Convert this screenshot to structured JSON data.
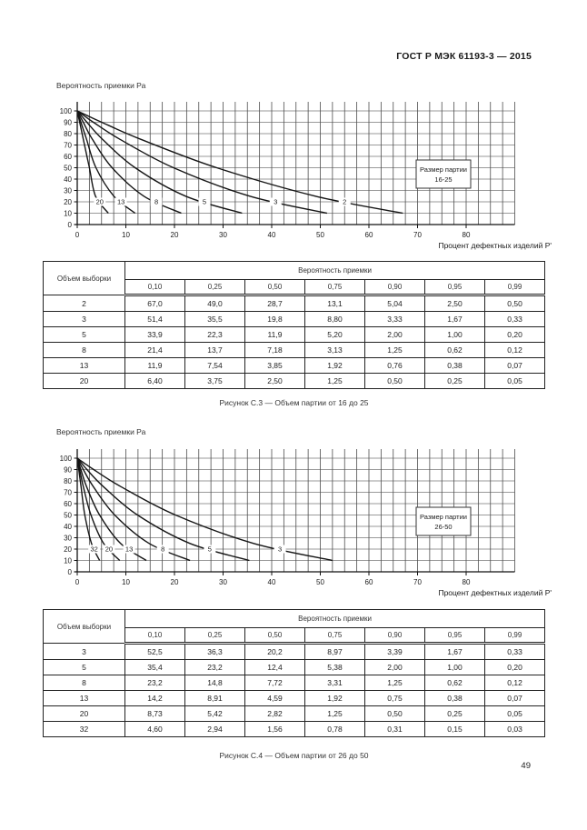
{
  "page": {
    "header": "ГОСТ Р МЭК 61193-3 — 2015",
    "page_number": "49"
  },
  "charts": [
    {
      "y_axis_title": "Вероятность приемки Ра",
      "x_axis_label": "Процент дефектных изделий Р'",
      "legend_box": {
        "line1": "Размер партии",
        "line2": "16-25"
      }
    },
    {
      "y_axis_title": "Вероятность приемки Ра",
      "x_axis_label": "Процент дефектных изделий Р'",
      "legend_box": {
        "line1": "Размер партии",
        "line2": "26-50"
      }
    }
  ],
  "chart_data": [
    {
      "type": "line",
      "title": "Кривые оперативной характеристики, размер партии 16-25",
      "xlabel": "Процент дефектных изделий Р'",
      "ylabel": "Вероятность приемки Ра",
      "xlim": [
        0,
        90
      ],
      "ylim": [
        0,
        100
      ],
      "x_ticks": [
        0,
        10,
        20,
        30,
        40,
        50,
        60,
        70,
        80
      ],
      "y_ticks": [
        0,
        10,
        20,
        30,
        40,
        50,
        60,
        70,
        80,
        90,
        100
      ],
      "x_minor_step": 2.5,
      "grid": true,
      "pa_levels": [
        100,
        99,
        95,
        90,
        75,
        50,
        25,
        10
      ],
      "series": [
        {
          "name": "20",
          "y": [
            100,
            99,
            95,
            90,
            75,
            50,
            25,
            10
          ],
          "x": [
            0,
            0.05,
            0.25,
            0.5,
            1.25,
            2.5,
            3.75,
            6.4
          ]
        },
        {
          "name": "13",
          "y": [
            100,
            99,
            95,
            90,
            75,
            50,
            25,
            10
          ],
          "x": [
            0,
            0.07,
            0.38,
            0.76,
            1.92,
            3.85,
            7.54,
            11.9
          ]
        },
        {
          "name": "8",
          "y": [
            100,
            99,
            95,
            90,
            75,
            50,
            25,
            10
          ],
          "x": [
            0,
            0.12,
            0.62,
            1.25,
            3.13,
            7.18,
            13.7,
            21.4
          ]
        },
        {
          "name": "5",
          "y": [
            100,
            99,
            95,
            90,
            75,
            50,
            25,
            10
          ],
          "x": [
            0,
            0.2,
            1.0,
            2.0,
            5.2,
            11.9,
            22.3,
            33.9
          ]
        },
        {
          "name": "3",
          "y": [
            100,
            99,
            95,
            90,
            75,
            50,
            25,
            10
          ],
          "x": [
            0,
            0.33,
            1.67,
            3.33,
            8.8,
            19.8,
            35.5,
            51.4
          ]
        },
        {
          "name": "2",
          "y": [
            100,
            99,
            95,
            90,
            75,
            50,
            25,
            10
          ],
          "x": [
            0,
            0.5,
            2.5,
            5.04,
            13.1,
            28.7,
            49.0,
            67.0
          ]
        }
      ]
    },
    {
      "type": "line",
      "title": "Кривые оперативной характеристики, размер партии 26-50",
      "xlabel": "Процент дефектных изделий Р'",
      "ylabel": "Вероятность приемки Ра",
      "xlim": [
        0,
        90
      ],
      "ylim": [
        0,
        100
      ],
      "x_ticks": [
        0,
        10,
        20,
        30,
        40,
        50,
        60,
        70,
        80
      ],
      "y_ticks": [
        0,
        10,
        20,
        30,
        40,
        50,
        60,
        70,
        80,
        90,
        100
      ],
      "x_minor_step": 2.5,
      "grid": true,
      "pa_levels": [
        100,
        99,
        95,
        90,
        75,
        50,
        25,
        10
      ],
      "series": [
        {
          "name": "32",
          "y": [
            100,
            99,
            95,
            90,
            75,
            50,
            25,
            10
          ],
          "x": [
            0,
            0.03,
            0.15,
            0.31,
            0.78,
            1.56,
            2.94,
            4.6
          ]
        },
        {
          "name": "20",
          "y": [
            100,
            99,
            95,
            90,
            75,
            50,
            25,
            10
          ],
          "x": [
            0,
            0.05,
            0.25,
            0.5,
            1.25,
            2.82,
            5.42,
            8.73
          ]
        },
        {
          "name": "13",
          "y": [
            100,
            99,
            95,
            90,
            75,
            50,
            25,
            10
          ],
          "x": [
            0,
            0.07,
            0.38,
            0.75,
            1.92,
            4.59,
            8.91,
            14.2
          ]
        },
        {
          "name": "8",
          "y": [
            100,
            99,
            95,
            90,
            75,
            50,
            25,
            10
          ],
          "x": [
            0,
            0.12,
            0.62,
            1.25,
            3.31,
            7.72,
            14.8,
            23.2
          ]
        },
        {
          "name": "5",
          "y": [
            100,
            99,
            95,
            90,
            75,
            50,
            25,
            10
          ],
          "x": [
            0,
            0.2,
            1.0,
            2.0,
            5.38,
            12.4,
            23.2,
            35.4
          ]
        },
        {
          "name": "3",
          "y": [
            100,
            99,
            95,
            90,
            75,
            50,
            25,
            10
          ],
          "x": [
            0,
            0.33,
            1.67,
            3.39,
            8.97,
            20.2,
            36.3,
            52.5
          ]
        }
      ]
    }
  ],
  "tables": [
    {
      "corner_header": "Объем выборки",
      "group_header": "Вероятность приемки",
      "col_headers": [
        "0,10",
        "0,25",
        "0,50",
        "0,75",
        "0,90",
        "0,95",
        "0,99"
      ],
      "rows": [
        [
          "2",
          "67,0",
          "49,0",
          "28,7",
          "13,1",
          "5,04",
          "2,50",
          "0,50"
        ],
        [
          "3",
          "51,4",
          "35,5",
          "19,8",
          "8,80",
          "3,33",
          "1,67",
          "0,33"
        ],
        [
          "5",
          "33,9",
          "22,3",
          "11,9",
          "5,20",
          "2,00",
          "1,00",
          "0,20"
        ],
        [
          "8",
          "21,4",
          "13,7",
          "7,18",
          "3,13",
          "1,25",
          "0,62",
          "0,12"
        ],
        [
          "13",
          "11,9",
          "7,54",
          "3,85",
          "1,92",
          "0,76",
          "0,38",
          "0,07"
        ],
        [
          "20",
          "6,40",
          "3,75",
          "2,50",
          "1,25",
          "0,50",
          "0,25",
          "0,05"
        ]
      ]
    },
    {
      "corner_header": "Объем выборки",
      "group_header": "Вероятность приемки",
      "col_headers": [
        "0,10",
        "0,25",
        "0,50",
        "0,75",
        "0,90",
        "0,95",
        "0,99"
      ],
      "rows": [
        [
          "3",
          "52,5",
          "36,3",
          "20,2",
          "8,97",
          "3,39",
          "1,67",
          "0,33"
        ],
        [
          "5",
          "35,4",
          "23,2",
          "12,4",
          "5,38",
          "2,00",
          "1,00",
          "0,20"
        ],
        [
          "8",
          "23,2",
          "14,8",
          "7,72",
          "3,31",
          "1,25",
          "0,62",
          "0,12"
        ],
        [
          "13",
          "14,2",
          "8,91",
          "4,59",
          "1,92",
          "0,75",
          "0,38",
          "0,07"
        ],
        [
          "20",
          "8,73",
          "5,42",
          "2,82",
          "1,25",
          "0,50",
          "0,25",
          "0,05"
        ],
        [
          "32",
          "4,60",
          "2,94",
          "1,56",
          "0,78",
          "0,31",
          "0,15",
          "0,03"
        ]
      ]
    }
  ],
  "captions": [
    "Рисунок С.3 — Объем партии от 16 до 25",
    "Рисунок С.4 — Объем партии от 26 до 50"
  ],
  "colors": {
    "text": "#1a1a1a",
    "curve": "#151515",
    "grid_vertical": "#4d4d4d",
    "grid_horizontal": "#9a9a9a",
    "axis": "#111111",
    "background": "#ffffff"
  }
}
